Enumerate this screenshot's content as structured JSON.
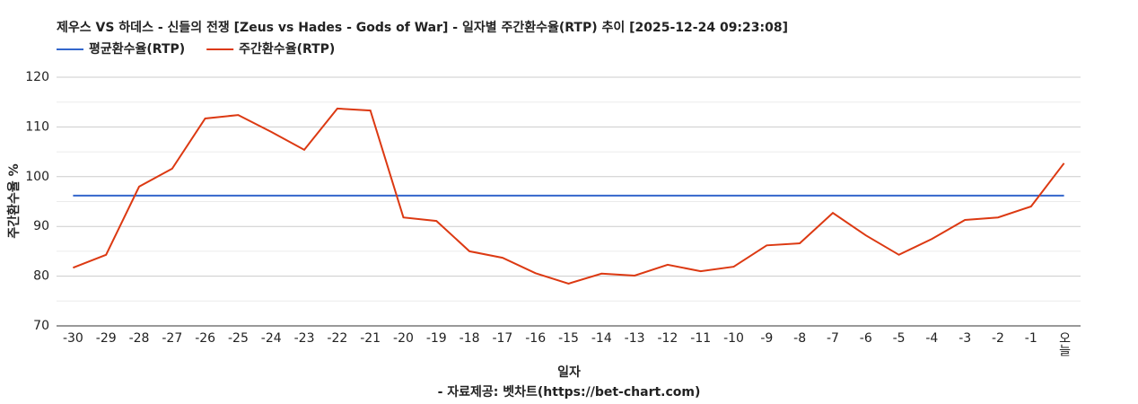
{
  "chart_data": {
    "type": "line",
    "title": "제우스 VS 하데스 - 신들의 전쟁 [Zeus vs Hades - Gods of War] - 일자별 주간환수율(RTP) 추이 [2025-12-24 09:23:08]",
    "x_label": "일자",
    "y_label": "주간환수율 %",
    "source": "- 자료제공: 벳차트(https://bet-chart.com)",
    "categories": [
      "-30",
      "-29",
      "-28",
      "-27",
      "-26",
      "-25",
      "-24",
      "-23",
      "-22",
      "-21",
      "-20",
      "-19",
      "-18",
      "-17",
      "-16",
      "-15",
      "-14",
      "-13",
      "-12",
      "-11",
      "-10",
      "-9",
      "-8",
      "-7",
      "-6",
      "-5",
      "-4",
      "-3",
      "-2",
      "-1",
      "오늘"
    ],
    "series": [
      {
        "name": "평균환수율(RTP)",
        "color": "#3366cc",
        "values": [
          96.2,
          96.2,
          96.2,
          96.2,
          96.2,
          96.2,
          96.2,
          96.2,
          96.2,
          96.2,
          96.2,
          96.2,
          96.2,
          96.2,
          96.2,
          96.2,
          96.2,
          96.2,
          96.2,
          96.2,
          96.2,
          96.2,
          96.2,
          96.2,
          96.2,
          96.2,
          96.2,
          96.2,
          96.2,
          96.2,
          96.2
        ]
      },
      {
        "name": "주간환수율(RTP)",
        "color": "#dc3912",
        "values": [
          81.7,
          84.3,
          98.0,
          101.6,
          111.7,
          112.4,
          109.0,
          105.4,
          113.7,
          113.3,
          91.8,
          91.1,
          85.0,
          83.7,
          80.6,
          78.5,
          80.5,
          80.1,
          82.3,
          81.0,
          81.9,
          86.2,
          86.6,
          92.7,
          88.2,
          84.3,
          87.5,
          91.3,
          91.8,
          94.0,
          102.7
        ]
      }
    ],
    "ylim": [
      70,
      120
    ],
    "yticks": [
      70,
      80,
      90,
      100,
      110,
      120
    ],
    "grid": true,
    "legend": "top-left"
  }
}
